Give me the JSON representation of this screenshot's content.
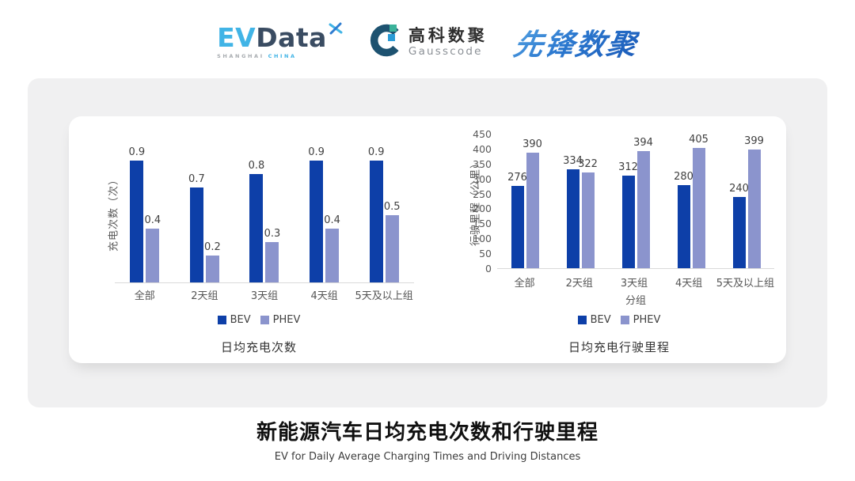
{
  "header": {
    "evdata": {
      "ev": "EV",
      "data": "Data",
      "sub_left": "SHANGHAI",
      "sub_right": "CHINA"
    },
    "gausscode": {
      "cn": "高科数聚",
      "en": "Gausscode"
    },
    "xianfeng": {
      "text": "先锋数聚"
    }
  },
  "colors": {
    "bev": "#0d3fa8",
    "phev": "#8b94cd",
    "panel_bg": "#f0f0f1",
    "axis_line": "#d9d9d9"
  },
  "chart_data": [
    {
      "type": "bar",
      "title": "日均充电次数",
      "ylabel": "充电次数（次）",
      "xlabel": "",
      "categories": [
        "全部",
        "2天组",
        "3天组",
        "4天组",
        "5天及以上组"
      ],
      "series": [
        {
          "name": "BEV",
          "color": "#0d3fa8",
          "values": [
            0.9,
            0.7,
            0.8,
            0.9,
            0.9
          ]
        },
        {
          "name": "PHEV",
          "color": "#8b94cd",
          "values": [
            0.4,
            0.2,
            0.3,
            0.4,
            0.5
          ]
        }
      ],
      "ylim": [
        0,
        1.0
      ],
      "yticks": [],
      "grid": false,
      "legend_position": "bottom"
    },
    {
      "type": "bar",
      "title": "日均充电行驶里程",
      "ylabel": "行驶里程（公里）",
      "xlabel": "分组",
      "categories": [
        "全部",
        "2天组",
        "3天组",
        "4天组",
        "5天及以上组"
      ],
      "series": [
        {
          "name": "BEV",
          "color": "#0d3fa8",
          "values": [
            276,
            334,
            312,
            280,
            240
          ]
        },
        {
          "name": "PHEV",
          "color": "#8b94cd",
          "values": [
            390,
            322,
            394,
            405,
            399
          ]
        }
      ],
      "ylim": [
        0,
        450
      ],
      "yticks": [
        450,
        400,
        350,
        300,
        250,
        200,
        150,
        100,
        50,
        0
      ],
      "grid": false,
      "legend_position": "bottom"
    }
  ],
  "footer": {
    "title": "新能源汽车日均充电次数和行驶里程",
    "subtitle": "EV for Daily Average Charging Times and Driving Distances"
  }
}
